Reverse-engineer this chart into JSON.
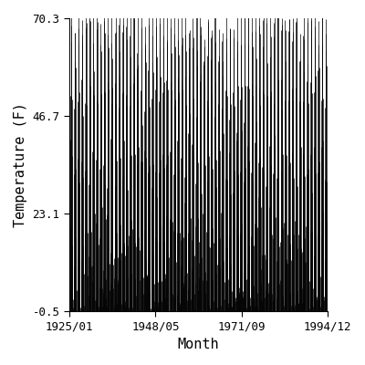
{
  "title": "",
  "xlabel": "Month",
  "ylabel": "Temperature (F)",
  "xlim_start_year": 1925,
  "xlim_start_month": 1,
  "xlim_end_year": 1994,
  "xlim_end_month": 12,
  "ylim": [
    -0.5,
    70.3
  ],
  "yticks": [
    -0.5,
    23.1,
    46.7,
    70.3
  ],
  "xtick_labels": [
    "1925/01",
    "1948/05",
    "1971/09",
    "1994/12"
  ],
  "line_color": "#000000",
  "background_color": "#ffffff",
  "seasonal_mean": 34.9,
  "amplitude": 35.4,
  "noise_std": 4.0,
  "figsize": [
    4.0,
    4.0
  ],
  "dpi": 100
}
